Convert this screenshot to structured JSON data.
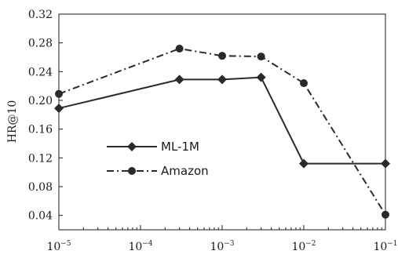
{
  "chart_data": {
    "type": "line",
    "title": "",
    "xlabel": "",
    "ylabel": "HR@10",
    "x_scale": "log",
    "xlim": [
      1e-05,
      0.1
    ],
    "ylim": [
      0.02,
      0.32
    ],
    "y_ticks": [
      "0.04",
      "0.08",
      "0.12",
      "0.16",
      "0.20",
      "0.24",
      "0.28",
      "0.32"
    ],
    "x_ticks": [
      {
        "base": "10",
        "exp": "−5"
      },
      {
        "base": "10",
        "exp": "−4"
      },
      {
        "base": "10",
        "exp": "−3"
      },
      {
        "base": "10",
        "exp": "−2"
      },
      {
        "base": "10",
        "exp": "−1"
      }
    ],
    "grid": false,
    "legend_position": "middle-left",
    "series": [
      {
        "name": "ML-1M",
        "color": "#2a2a2a",
        "marker": "diamond",
        "line_style": "solid",
        "x": [
          1e-05,
          0.0003,
          0.001,
          0.003,
          0.01,
          0.1
        ],
        "y": [
          0.189,
          0.229,
          0.229,
          0.232,
          0.112,
          0.112
        ]
      },
      {
        "name": "Amazon",
        "color": "#2a2a2a",
        "marker": "circle",
        "line_style": "dash-dot",
        "x": [
          1e-05,
          0.0003,
          0.001,
          0.003,
          0.01,
          0.1
        ],
        "y": [
          0.209,
          0.272,
          0.262,
          0.261,
          0.224,
          0.041
        ]
      }
    ]
  }
}
